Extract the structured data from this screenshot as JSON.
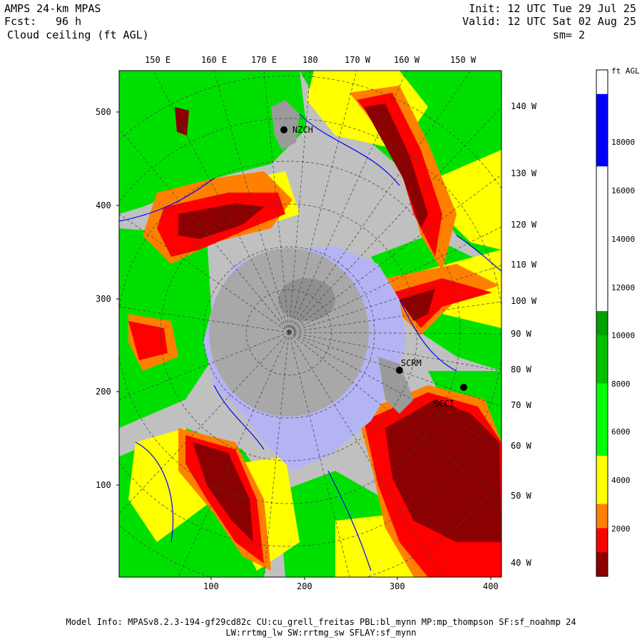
{
  "header": {
    "model": "AMPS 24-km MPAS",
    "fcst_label": "Fcst:",
    "fcst_value": "96 h",
    "field": "Cloud ceiling (ft AGL)",
    "init": "Init: 12 UTC Tue 29 Jul 25",
    "valid": "Valid: 12 UTC Sat 02 Aug 25",
    "smoothing": "sm= 2"
  },
  "map": {
    "top_lon_labels": [
      "150 E",
      "160 E",
      "170 E",
      "180",
      "170 W",
      "160 W",
      "150 W"
    ],
    "right_lon_labels": [
      "140 W",
      "130 W",
      "120 W",
      "110 W",
      "100 W",
      "90 W",
      "80 W",
      "70 W",
      "60 W",
      "50 W",
      "40 W"
    ],
    "y_axis_labels": [
      "500",
      "400",
      "300",
      "200",
      "100"
    ],
    "x_axis_labels": [
      "100",
      "200",
      "300",
      "400"
    ],
    "stations": [
      "NZCH",
      "SCRM",
      "SCCI"
    ],
    "colors": {
      "ocean": "#c0c0c0",
      "ice_shelf": "#b4b4f4",
      "continent": "#a8a8a8",
      "green": "#00e000",
      "yellow": "#ffff00",
      "orange": "#ff8000",
      "red": "#ff0000",
      "darkred": "#8b0000",
      "contour": "#0000ff"
    }
  },
  "colorbar": {
    "unit": "ft AGL",
    "labels": [
      "18000",
      "16000",
      "14000",
      "12000",
      "10000",
      "8000",
      "6000",
      "4000",
      "2000"
    ],
    "colors": [
      "#ffffff",
      "#0000ff",
      "#0000ff",
      "#0000ff",
      "#ffffff",
      "#ffffff",
      "#ffffff",
      "#ffffff",
      "#ffffff",
      "#ffffff",
      "#00a000",
      "#00c000",
      "#00c000",
      "#00ff00",
      "#00ff00",
      "#00ff00",
      "#ffff00",
      "#ffff00",
      "#ff8000",
      "#ff0000",
      "#8b0000"
    ]
  },
  "footer": {
    "line1": "Model Info: MPASv8.2.3-194-gf29cd82c CU:cu_grell_freitas PBL:bl_mynn MP:mp_thompson SF:sf_noahmp 24",
    "line2": "LW:rrtmg_lw SW:rrtmg_sw SFLAY:sf_mynn"
  }
}
